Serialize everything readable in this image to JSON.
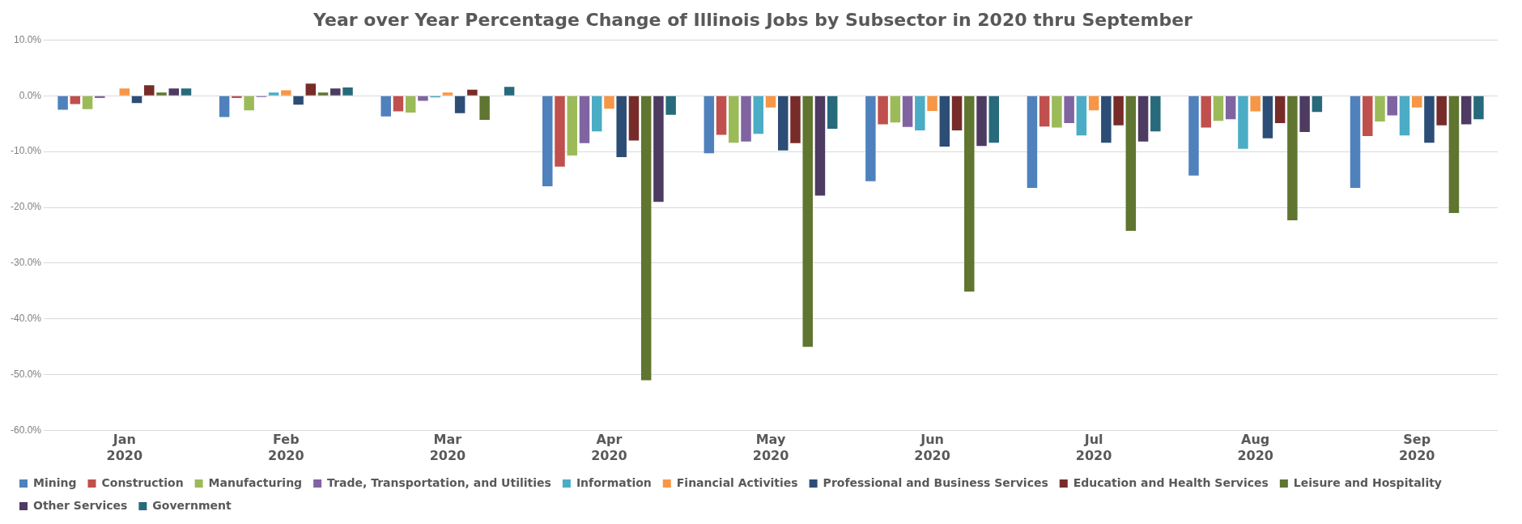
{
  "chart_data": {
    "type": "bar",
    "title": "Year over Year Percentage Change of Illinois Jobs by Subsector in 2020 thru September",
    "categories": [
      "Jan 2020",
      "Feb 2020",
      "Mar 2020",
      "Apr 2020",
      "May 2020",
      "Jun 2020",
      "Jul 2020",
      "Aug 2020",
      "Sep 2020"
    ],
    "series": [
      {
        "name": "Mining",
        "color": "#4f81bd",
        "values": [
          -2.5,
          -3.8,
          -3.7,
          -16.2,
          -10.3,
          -15.3,
          -16.5,
          -14.3,
          -16.5
        ]
      },
      {
        "name": "Construction",
        "color": "#c0504d",
        "values": [
          -1.5,
          -0.4,
          -2.8,
          -12.7,
          -7.0,
          -5.1,
          -5.5,
          -5.7,
          -7.2
        ]
      },
      {
        "name": "Manufacturing",
        "color": "#9bbb59",
        "values": [
          -2.4,
          -2.6,
          -3.0,
          -10.7,
          -8.4,
          -4.8,
          -5.7,
          -4.5,
          -4.6
        ]
      },
      {
        "name": "Trade, Transportation, and Utilities",
        "color": "#8064a2",
        "values": [
          -0.4,
          -0.2,
          -0.9,
          -8.5,
          -8.2,
          -5.6,
          -4.9,
          -4.2,
          -3.5
        ]
      },
      {
        "name": "Information",
        "color": "#4bacc6",
        "values": [
          0,
          0.6,
          -0.3,
          -6.4,
          -6.8,
          -6.2,
          -7.1,
          -9.5,
          -7.1
        ]
      },
      {
        "name": "Financial Activities",
        "color": "#f79646",
        "values": [
          1.3,
          1.0,
          0.6,
          -2.3,
          -2.1,
          -2.7,
          -2.6,
          -2.8,
          -2.1
        ]
      },
      {
        "name": "Professional and Business Services",
        "color": "#2c4d75",
        "values": [
          -1.3,
          -1.6,
          -3.1,
          -11.0,
          -9.8,
          -9.1,
          -8.4,
          -7.6,
          -8.4
        ]
      },
      {
        "name": "Education and Health Services",
        "color": "#772c2a",
        "values": [
          1.9,
          2.2,
          1.1,
          -8.0,
          -8.5,
          -6.2,
          -5.3,
          -4.9,
          -5.3
        ]
      },
      {
        "name": "Leisure and Hospitality",
        "color": "#5f7530",
        "values": [
          0.6,
          0.6,
          -4.3,
          -51.0,
          -45.0,
          -35.1,
          -24.2,
          -22.3,
          -21.0
        ]
      },
      {
        "name": "Other Services",
        "color": "#4d3b62",
        "values": [
          1.3,
          1.3,
          0,
          -19.0,
          -17.9,
          -9.0,
          -8.2,
          -6.5,
          -5.1
        ]
      },
      {
        "name": "Government",
        "color": "#276a7c",
        "values": [
          1.3,
          1.5,
          1.6,
          -3.4,
          -5.9,
          -8.4,
          -6.4,
          -2.9,
          -4.2
        ]
      }
    ],
    "ylim": [
      -60,
      10
    ],
    "yticks": [
      {
        "value": -60,
        "label": "-60.0%"
      },
      {
        "value": -50,
        "label": "-50.0%"
      },
      {
        "value": -40,
        "label": "-40.0%"
      },
      {
        "value": -30,
        "label": "-30.0%"
      },
      {
        "value": -20,
        "label": "-20.0%"
      },
      {
        "value": -10,
        "label": "-10.0%"
      },
      {
        "value": 0,
        "label": "0.0%"
      },
      {
        "value": 10,
        "label": "10.0%"
      }
    ],
    "grid": "y",
    "legend": "bottom"
  }
}
